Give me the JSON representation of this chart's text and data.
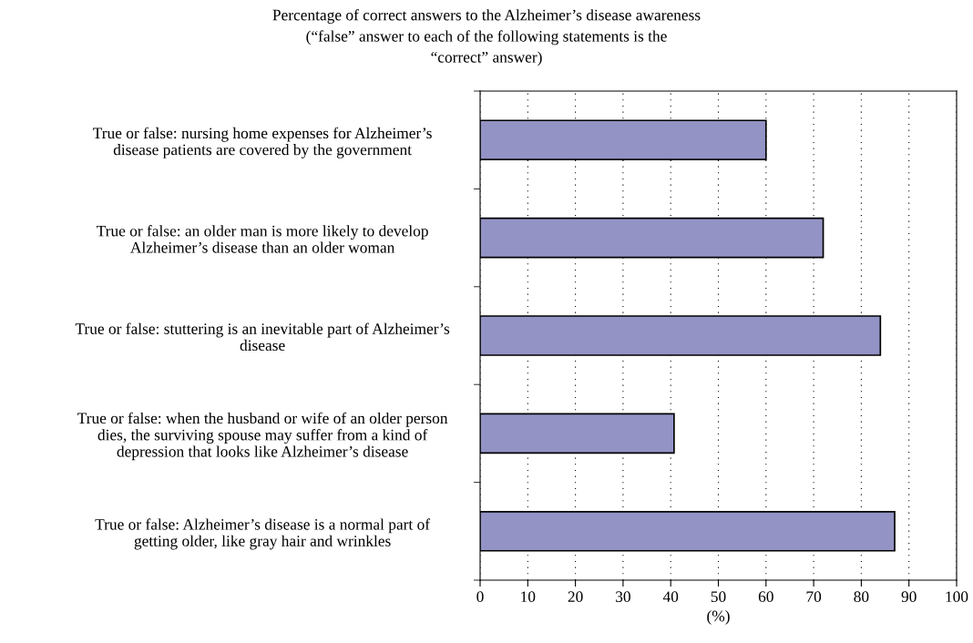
{
  "chart_data": {
    "type": "bar",
    "orientation": "horizontal",
    "title": "Percentage of correct answers to the Alzheimer’s disease awareness\n(“false” answer to each of the following statements is the\n“correct” answer)",
    "xlabel": "(%)",
    "categories": [
      "True or false: nursing home expenses for Alzheimer’s\ndisease patients are covered by the government",
      "True or false: an older man is more likely to develop\nAlzheimer’s disease than an older woman",
      "True or false: stuttering is an inevitable part of Alzheimer’s\ndisease",
      "True or false: when the husband or wife of an older person\ndies, the surviving spouse may suffer from a kind of\ndepression that looks like Alzheimer’s disease",
      "True or false: Alzheimer’s disease is a normal part of\ngetting older, like gray hair and wrinkles"
    ],
    "values": [
      60,
      72,
      84,
      40.7,
      87
    ],
    "color": "#9393c6",
    "xlim": [
      0,
      100
    ],
    "xticks": [
      0,
      10,
      20,
      30,
      40,
      50,
      60,
      70,
      80,
      90,
      100
    ],
    "grid": "x"
  }
}
